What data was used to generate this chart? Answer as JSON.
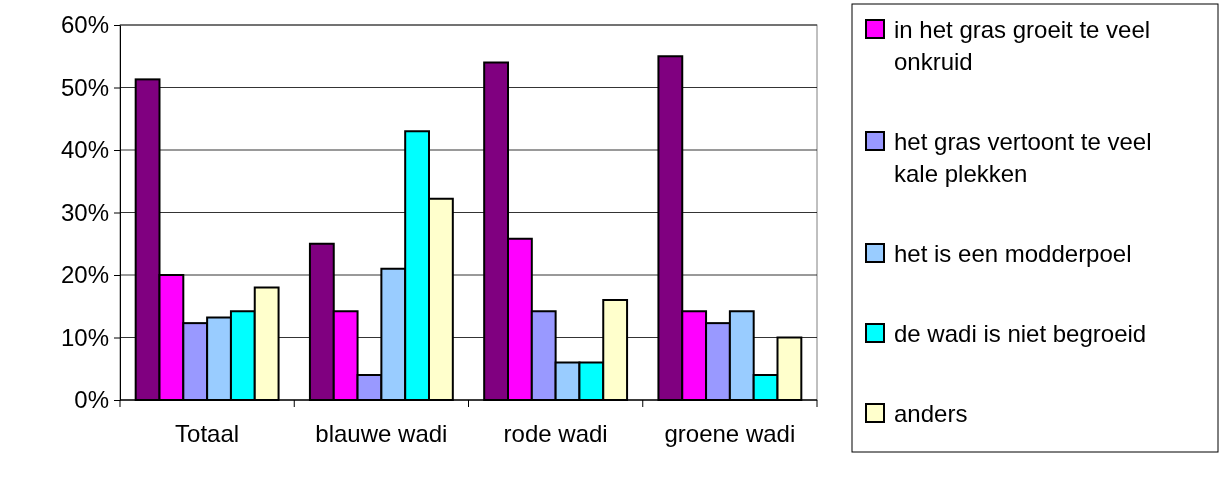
{
  "chart_data": {
    "type": "bar",
    "categories": [
      "Totaal",
      "blauwe wadi",
      "rode wadi",
      "groene wadi"
    ],
    "series": [
      {
        "color": "#800080",
        "values": [
          51.3,
          25,
          54,
          55
        ]
      },
      {
        "name": "in het gras groeit te veel onkruid",
        "color": "#ff00ff",
        "values": [
          20,
          14.2,
          25.8,
          14.2
        ]
      },
      {
        "name": "het gras vertoont te veel kale plekken",
        "color": "#9999ff",
        "values": [
          12.3,
          4,
          14.2,
          12.3
        ]
      },
      {
        "name": "het is een modderpoel",
        "color": "#99ccff",
        "values": [
          13.2,
          21,
          6,
          14.2
        ]
      },
      {
        "name": "de wadi is niet begroeid",
        "color": "#00ffff",
        "values": [
          14.2,
          43,
          6,
          4
        ]
      },
      {
        "name": "anders",
        "color": "#ffffcc",
        "values": [
          18,
          32.2,
          16,
          10
        ]
      }
    ],
    "ylim": [
      0,
      60
    ],
    "yticks": [
      {
        "value": 0,
        "label": "0%"
      },
      {
        "value": 10,
        "label": "10%"
      },
      {
        "value": 20,
        "label": "20%"
      },
      {
        "value": 30,
        "label": "30%"
      },
      {
        "value": 40,
        "label": "40%"
      },
      {
        "value": 50,
        "label": "50%"
      },
      {
        "value": 60,
        "label": "60%"
      }
    ],
    "grid": "y",
    "legend": "right"
  }
}
